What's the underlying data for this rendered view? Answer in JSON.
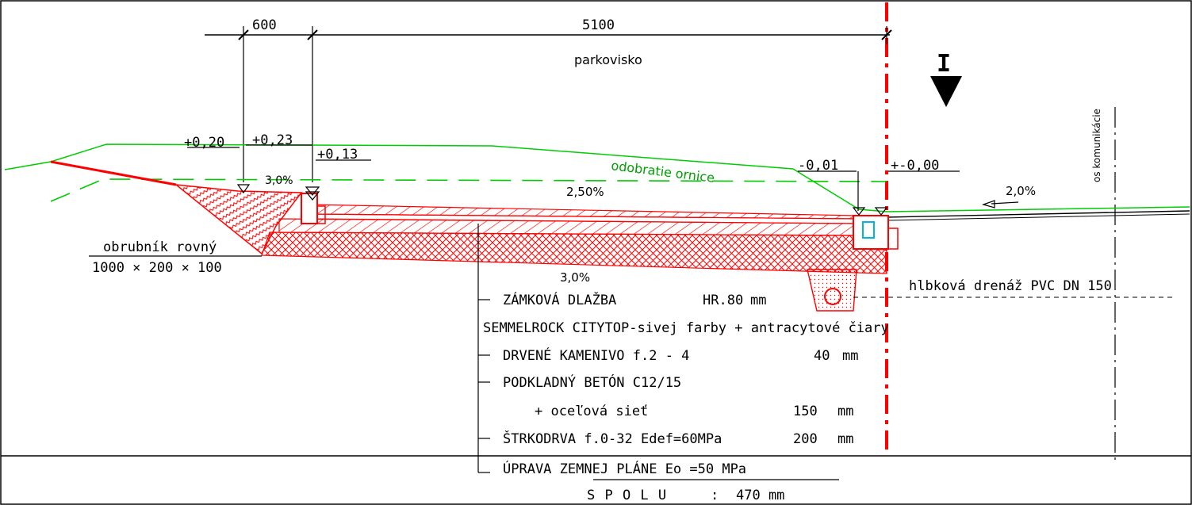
{
  "dimensions": {
    "kerb_width": "600",
    "parking_width": "5100"
  },
  "labels": {
    "parking": "parkovisko",
    "road_axis": "os komunikácie",
    "topsoil_removal": "odobratie ornice",
    "kerb_name": "obrubník rovný",
    "kerb_size": "1000 × 200 × 100",
    "drainage": "hlbková drenáž PVC DN 150",
    "section_mark": "I"
  },
  "levels": {
    "kerb_outer": "+0,20",
    "kerb_top": "+0,23",
    "pavement_edge": "+0,13",
    "gutter": "-0,01",
    "road_edge": "+-0,00"
  },
  "slopes": {
    "ground": "3,0%",
    "surface": "2,50%",
    "subgrade": "3,0%",
    "road": "2,0%"
  },
  "layers": [
    {
      "name": "ZÁMKOVÁ DLAŽBA",
      "spec": "HR.80",
      "unit": "mm"
    },
    {
      "name": "SEMMELROCK CITYTOP-sivej farby + antracytové čiary"
    },
    {
      "name": "DRVENÉ KAMENIVO f.2 - 4",
      "spec": "40",
      "unit": "mm"
    },
    {
      "name": "PODKLADNÝ BETÓN C12/15"
    },
    {
      "name": "+ oceľová sieť",
      "spec": "150",
      "unit": "mm"
    },
    {
      "name": "ŠTRKODRVA f.0-32 Edef=60MPa",
      "spec": "200",
      "unit": "mm"
    },
    {
      "name": "ÚPRAVA ZEMNEJ PLÁNE Eo =50 MPa"
    }
  ],
  "total": {
    "label": "S P O L U",
    "sep": ":",
    "value": "470 mm"
  },
  "colors": {
    "structure": "#ff0000",
    "terrain": "#00cc00",
    "drainage_fill": "#ffe6e6",
    "gully": "#00b7d8"
  }
}
